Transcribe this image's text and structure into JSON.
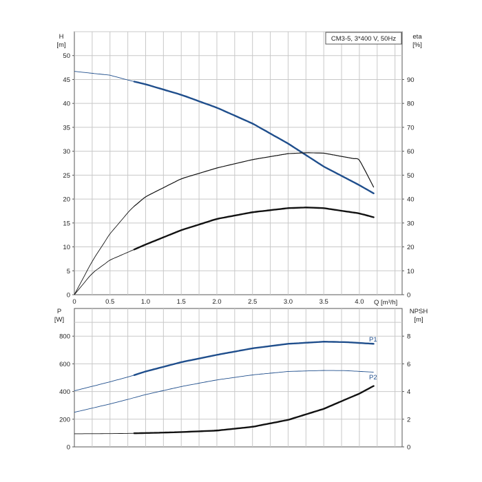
{
  "colors": {
    "blue": "#1f4e8c",
    "black": "#111111",
    "grid": "#c8c8c8",
    "frame": "#555555"
  },
  "chart_data": [
    {
      "type": "line",
      "title": "CM3-5, 3*400 V, 50Hz",
      "xlabel": "Q [m³/h]",
      "ylabel_left": [
        "H",
        "[m]"
      ],
      "ylabel_right": [
        "eta",
        "[%]"
      ],
      "x_ticks": [
        "0",
        "0.5",
        "1.0",
        "1.5",
        "2.0",
        "2.5",
        "3.0",
        "3.5",
        "4.0"
      ],
      "y_left_ticks": [
        "0",
        "5",
        "10",
        "15",
        "20",
        "25",
        "30",
        "35",
        "40",
        "45",
        "50"
      ],
      "y_right_ticks": [
        "0",
        "10",
        "20",
        "30",
        "40",
        "50",
        "60",
        "70",
        "80",
        "90"
      ],
      "xlim": [
        0,
        4.6
      ],
      "ylim_left": [
        0,
        55
      ],
      "ylim_right": [
        0,
        110
      ],
      "grid": true,
      "series": [
        {
          "axis": "left",
          "color": "#1f4e8c",
          "x": [
            0,
            0.5,
            0.8,
            1.0,
            1.5,
            2.0,
            2.5,
            3.0,
            3.5,
            4.0,
            4.2
          ],
          "y": [
            46.7,
            45.9,
            44.7,
            44.0,
            41.8,
            39.1,
            35.8,
            31.6,
            26.8,
            22.9,
            21.2
          ],
          "bold_from": 0.8,
          "bold_to": 4.2
        },
        {
          "axis": "right",
          "color": "#111111",
          "x": [
            0,
            0.25,
            0.5,
            0.8,
            1.0,
            1.5,
            2.0,
            2.5,
            3.0,
            3.25,
            3.5,
            4.0,
            4.2
          ],
          "y": [
            0,
            14,
            25.5,
            36,
            41,
            48.5,
            53,
            56.5,
            59,
            59.4,
            59.2,
            56.5,
            45
          ],
          "bold_from": 0.8,
          "bold_to": 4.2,
          "thin": true
        },
        {
          "axis": "right",
          "color": "#111111",
          "x": [
            0,
            0.25,
            0.5,
            0.8,
            1.0,
            1.5,
            2.0,
            2.5,
            3.0,
            3.25,
            3.5,
            4.0,
            4.2
          ],
          "y": [
            0,
            9,
            14.5,
            18.4,
            21,
            27,
            31.7,
            34.5,
            36.2,
            36.5,
            36.2,
            34,
            32.4
          ],
          "bold_from": 0.8,
          "bold_to": 4.2
        }
      ]
    },
    {
      "type": "line",
      "ylabel_left": [
        "P",
        "[W]"
      ],
      "ylabel_right": [
        "NPSH",
        "[m]"
      ],
      "y_left_ticks": [
        "0",
        "200",
        "400",
        "600",
        "800"
      ],
      "y_right_ticks": [
        "0",
        "2",
        "4",
        "6",
        "8"
      ],
      "xlim": [
        0,
        4.6
      ],
      "ylim_left": [
        0,
        1000
      ],
      "ylim_right": [
        0,
        10
      ],
      "grid": true,
      "series": [
        {
          "name": "P1",
          "axis": "left",
          "color": "#1f4e8c",
          "x": [
            0,
            0.5,
            0.8,
            1.0,
            1.5,
            2.0,
            2.5,
            3.0,
            3.5,
            3.8,
            4.2
          ],
          "y": [
            405,
            470,
            512,
            545,
            612,
            665,
            712,
            745,
            760,
            757,
            745
          ],
          "bold_from": 0.8,
          "bold_to": 4.2
        },
        {
          "name": "P2",
          "axis": "left",
          "color": "#1f4e8c",
          "x": [
            0,
            0.5,
            0.8,
            1.0,
            1.5,
            2.0,
            2.5,
            3.0,
            3.5,
            3.8,
            4.2
          ],
          "y": [
            250,
            310,
            350,
            378,
            436,
            484,
            520,
            545,
            552,
            551,
            540
          ],
          "bold_from": 4.3,
          "bold_to": 4.3
        },
        {
          "axis": "right",
          "color": "#111111",
          "x": [
            0,
            0.5,
            0.8,
            1.0,
            1.5,
            2.0,
            2.5,
            3.0,
            3.5,
            4.0,
            4.2
          ],
          "y": [
            0.95,
            0.96,
            0.98,
            1.0,
            1.07,
            1.18,
            1.45,
            1.95,
            2.75,
            3.85,
            4.4
          ],
          "bold_from": 0.8,
          "bold_to": 4.2
        }
      ]
    }
  ]
}
